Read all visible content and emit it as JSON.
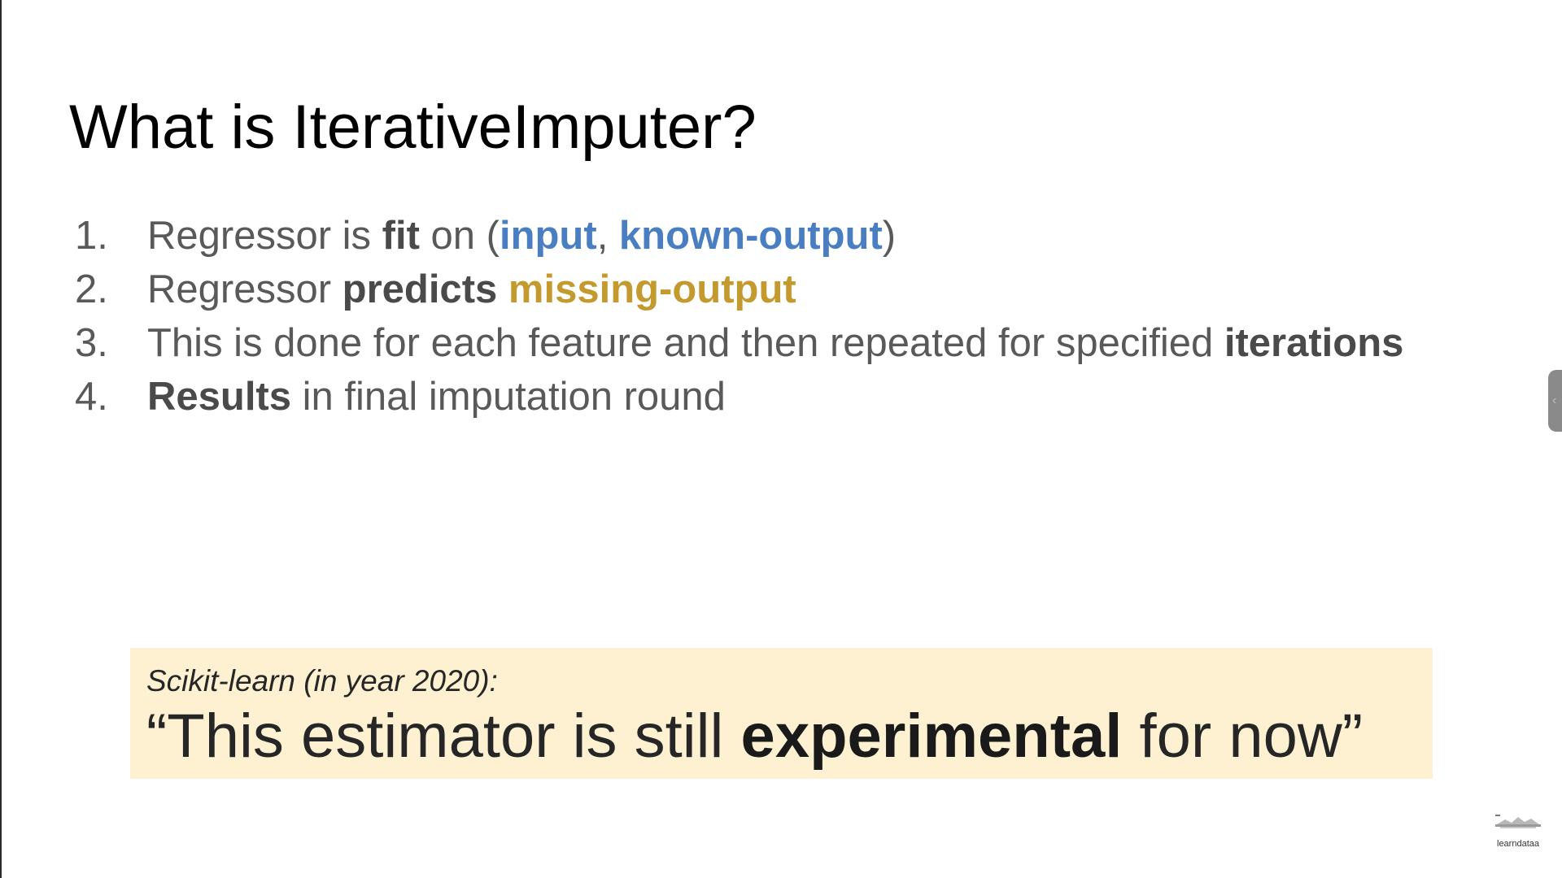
{
  "slide": {
    "title": "What is IterativeImputer?",
    "steps": [
      {
        "number": "1.",
        "parts": [
          "Regressor is ",
          "fit",
          " on (",
          "input",
          ", ",
          "known-output",
          ")"
        ]
      },
      {
        "number": "2.",
        "parts": [
          "Regressor ",
          "predicts",
          " ",
          "missing-output"
        ]
      },
      {
        "number": "3.",
        "parts": [
          "This is done for each feature and then repeated for specified ",
          "iterations"
        ]
      },
      {
        "number": "4.",
        "parts": [
          "Results",
          " in final imputation round"
        ]
      }
    ],
    "quote": {
      "source": "Scikit-learn (in year 2020):",
      "parts": [
        "“This estimator is still ",
        "experimental",
        " for now”"
      ]
    }
  },
  "watermark": {
    "text": "learndataa"
  },
  "colors": {
    "accent_blue": "#4a7ec2",
    "accent_gold": "#c49a2e",
    "quote_background": "#fdf1d2",
    "body_text": "#595959"
  },
  "icons": {
    "side_handle": "chevron-left-icon",
    "watermark_logo": "learndataa-logo-icon"
  }
}
